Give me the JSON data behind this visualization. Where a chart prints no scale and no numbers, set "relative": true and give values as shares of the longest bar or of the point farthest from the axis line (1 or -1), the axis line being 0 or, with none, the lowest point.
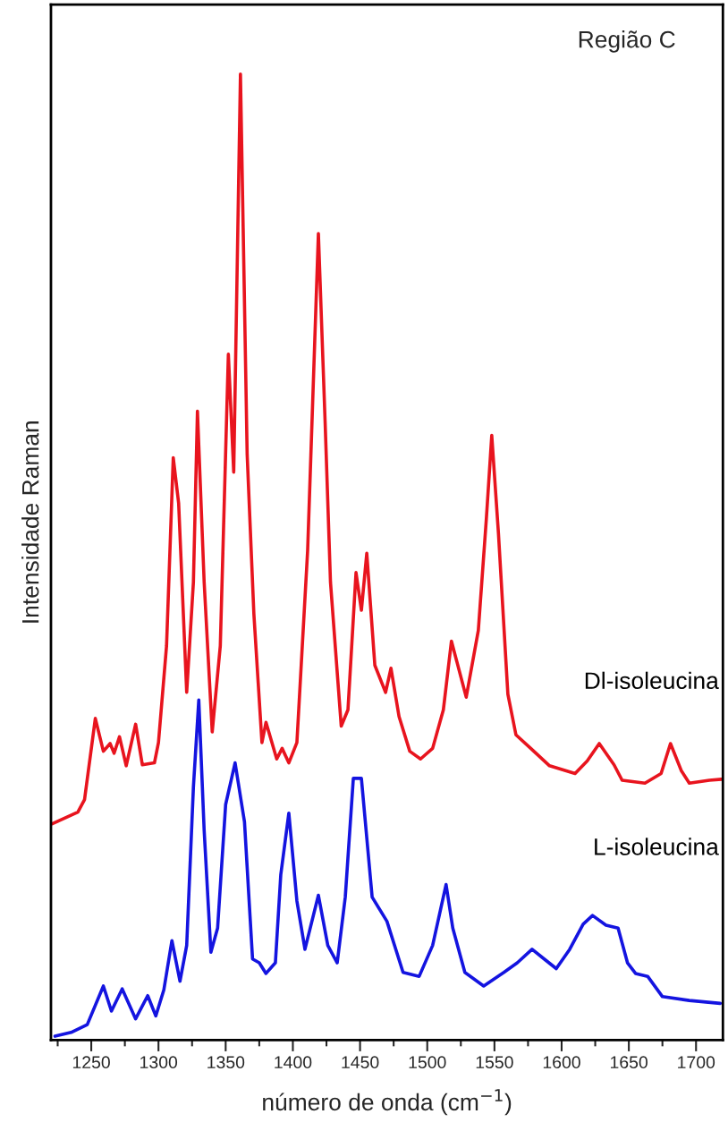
{
  "chart_data": {
    "type": "line",
    "relative": true,
    "xlabel": "número de onda (cm$^{−1}$)",
    "ylabel": "Intensidade Raman",
    "annotations": [
      "Região C"
    ],
    "xlim": [
      1220,
      1720
    ],
    "xticks": [
      {
        "value": 1225,
        "label": null
      },
      1250,
      {
        "value": 1275,
        "label": null
      },
      1300,
      {
        "value": 1325,
        "label": null
      },
      1350,
      {
        "value": 1375,
        "label": null
      },
      1400,
      {
        "value": 1425,
        "label": null
      },
      1450,
      {
        "value": 1475,
        "label": null
      },
      1500,
      {
        "value": 1525,
        "label": null
      },
      1550,
      {
        "value": 1575,
        "label": null
      },
      1600,
      {
        "value": 1625,
        "label": null
      },
      1650,
      {
        "value": 1675,
        "label": null
      },
      1700
    ],
    "grid": false,
    "legend": false,
    "marker": "none",
    "line_style": "solid",
    "series": [
      {
        "name": "Dl-isoleucina",
        "color": "#e8141e",
        "x": [
          1221,
          1240,
          1245,
          1253,
          1259,
          1264,
          1267,
          1271,
          1276,
          1283,
          1288,
          1297,
          1300,
          1306,
          1311,
          1315,
          1321,
          1326,
          1329,
          1334,
          1340,
          1346,
          1352,
          1356,
          1361,
          1366,
          1371,
          1377,
          1380,
          1388,
          1392,
          1397,
          1403,
          1411,
          1419,
          1424,
          1428,
          1436,
          1441,
          1447,
          1451,
          1455,
          1461,
          1469,
          1473,
          1479,
          1487,
          1495,
          1504,
          1512,
          1518,
          1529,
          1538,
          1544,
          1548,
          1553,
          1560,
          1566,
          1577,
          1591,
          1610,
          1619,
          1628,
          1639,
          1645,
          1662,
          1674,
          1681,
          1689,
          1695,
          1710,
          1719
        ],
        "values": [
          0.224,
          0.236,
          0.249,
          0.333,
          0.299,
          0.307,
          0.297,
          0.314,
          0.284,
          0.327,
          0.285,
          0.287,
          0.308,
          0.408,
          0.603,
          0.556,
          0.36,
          0.474,
          0.651,
          0.474,
          0.319,
          0.408,
          0.71,
          0.588,
          1.0,
          0.606,
          0.441,
          0.308,
          0.329,
          0.291,
          0.302,
          0.287,
          0.308,
          0.507,
          0.835,
          0.64,
          0.474,
          0.325,
          0.342,
          0.484,
          0.445,
          0.504,
          0.388,
          0.36,
          0.385,
          0.335,
          0.299,
          0.291,
          0.302,
          0.342,
          0.413,
          0.355,
          0.424,
          0.54,
          0.626,
          0.524,
          0.358,
          0.316,
          0.302,
          0.284,
          0.276,
          0.289,
          0.307,
          0.285,
          0.269,
          0.266,
          0.276,
          0.307,
          0.279,
          0.266,
          0.269,
          0.27
        ]
      },
      {
        "name": "L-isoleucina",
        "color": "#1414e0",
        "x": [
          1223,
          1235,
          1247,
          1259,
          1265,
          1273,
          1283,
          1292,
          1298,
          1304,
          1310,
          1316,
          1321,
          1326,
          1330,
          1334,
          1339,
          1344,
          1350,
          1357,
          1364,
          1370,
          1375,
          1380,
          1387,
          1391,
          1397,
          1403,
          1409,
          1419,
          1426,
          1433,
          1439,
          1445,
          1451,
          1459,
          1470,
          1482,
          1494,
          1504,
          1514,
          1519,
          1528,
          1542,
          1557,
          1567,
          1578,
          1587,
          1596,
          1606,
          1616,
          1623,
          1633,
          1642,
          1649,
          1655,
          1664,
          1675,
          1695,
          1718
        ],
        "values": [
          0.004,
          0.008,
          0.016,
          0.056,
          0.03,
          0.053,
          0.022,
          0.046,
          0.025,
          0.052,
          0.103,
          0.061,
          0.098,
          0.262,
          0.352,
          0.217,
          0.091,
          0.116,
          0.244,
          0.287,
          0.226,
          0.084,
          0.08,
          0.069,
          0.08,
          0.171,
          0.235,
          0.144,
          0.094,
          0.15,
          0.098,
          0.08,
          0.148,
          0.271,
          0.271,
          0.148,
          0.123,
          0.07,
          0.066,
          0.098,
          0.161,
          0.116,
          0.07,
          0.056,
          0.07,
          0.08,
          0.094,
          0.084,
          0.074,
          0.094,
          0.12,
          0.129,
          0.119,
          0.116,
          0.08,
          0.069,
          0.066,
          0.045,
          0.041,
          0.038
        ]
      }
    ]
  }
}
